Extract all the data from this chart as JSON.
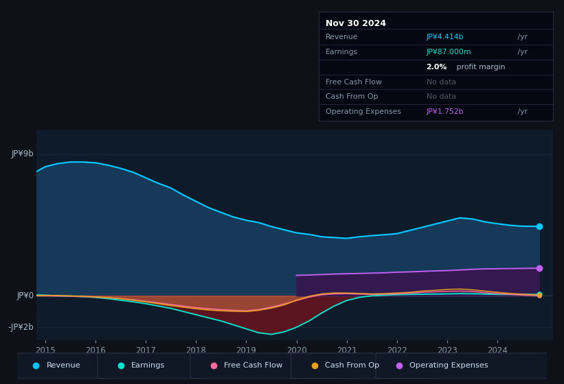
{
  "bg_color": "#0e1117",
  "plot_bg_color": "#0d1b2a",
  "title": "Nov 30 2024",
  "ylabel_top": "JP¥9b",
  "ylabel_zero": "JP¥0",
  "ylabel_neg": "-JP¥2b",
  "x_years": [
    2014.83,
    2015.0,
    2015.25,
    2015.5,
    2015.75,
    2016.0,
    2016.25,
    2016.5,
    2016.75,
    2017.0,
    2017.25,
    2017.5,
    2017.75,
    2018.0,
    2018.25,
    2018.5,
    2018.75,
    2019.0,
    2019.25,
    2019.5,
    2019.75,
    2020.0,
    2020.25,
    2020.5,
    2020.75,
    2021.0,
    2021.25,
    2021.5,
    2021.75,
    2022.0,
    2022.25,
    2022.5,
    2022.75,
    2023.0,
    2023.25,
    2023.5,
    2023.75,
    2024.0,
    2024.25,
    2024.5,
    2024.83
  ],
  "revenue": [
    7.9,
    8.2,
    8.4,
    8.5,
    8.5,
    8.45,
    8.3,
    8.1,
    7.85,
    7.5,
    7.15,
    6.85,
    6.4,
    6.0,
    5.6,
    5.3,
    5.0,
    4.8,
    4.65,
    4.4,
    4.2,
    4.0,
    3.9,
    3.75,
    3.7,
    3.65,
    3.75,
    3.82,
    3.88,
    3.95,
    4.15,
    4.35,
    4.55,
    4.75,
    4.95,
    4.88,
    4.7,
    4.58,
    4.48,
    4.42,
    4.414
  ],
  "earnings": [
    0.05,
    0.04,
    0.0,
    -0.02,
    -0.05,
    -0.1,
    -0.18,
    -0.28,
    -0.38,
    -0.5,
    -0.65,
    -0.8,
    -1.0,
    -1.2,
    -1.4,
    -1.6,
    -1.85,
    -2.1,
    -2.35,
    -2.45,
    -2.3,
    -2.0,
    -1.6,
    -1.1,
    -0.65,
    -0.3,
    -0.1,
    0.0,
    0.04,
    0.07,
    0.09,
    0.1,
    0.11,
    0.12,
    0.14,
    0.13,
    0.11,
    0.09,
    0.088,
    0.087,
    0.087
  ],
  "free_cash_flow": [
    0.0,
    0.0,
    -0.01,
    -0.03,
    -0.05,
    -0.08,
    -0.12,
    -0.18,
    -0.25,
    -0.35,
    -0.45,
    -0.55,
    -0.65,
    -0.75,
    -0.82,
    -0.88,
    -0.92,
    -0.95,
    -0.88,
    -0.72,
    -0.52,
    -0.3,
    -0.08,
    0.06,
    0.12,
    0.13,
    0.11,
    0.08,
    0.1,
    0.12,
    0.16,
    0.22,
    0.25,
    0.28,
    0.3,
    0.27,
    0.2,
    0.14,
    0.09,
    0.04,
    0.0
  ],
  "cash_from_op": [
    0.02,
    0.03,
    0.02,
    0.0,
    -0.03,
    -0.06,
    -0.12,
    -0.18,
    -0.28,
    -0.38,
    -0.5,
    -0.62,
    -0.72,
    -0.82,
    -0.9,
    -0.95,
    -0.98,
    -1.0,
    -0.92,
    -0.78,
    -0.58,
    -0.28,
    -0.03,
    0.12,
    0.18,
    0.18,
    0.15,
    0.12,
    0.14,
    0.18,
    0.22,
    0.3,
    0.35,
    0.4,
    0.43,
    0.38,
    0.3,
    0.22,
    0.15,
    0.1,
    0.05
  ],
  "op_expenses": [
    null,
    null,
    null,
    null,
    null,
    null,
    null,
    null,
    null,
    null,
    null,
    null,
    null,
    null,
    null,
    null,
    null,
    null,
    null,
    null,
    null,
    1.3,
    1.32,
    1.35,
    1.38,
    1.4,
    1.42,
    1.44,
    1.46,
    1.5,
    1.52,
    1.55,
    1.58,
    1.6,
    1.64,
    1.68,
    1.71,
    1.72,
    1.73,
    1.74,
    1.752
  ],
  "revenue_color": "#00c8ff",
  "revenue_fill": "#16395a",
  "earnings_color": "#00e5cc",
  "earnings_fill_neg": "#5a1520",
  "free_cash_flow_color": "#ff6b9d",
  "cash_from_op_color": "#e8a020",
  "op_expenses_color": "#c060f0",
  "op_expenses_fill": "#341850",
  "grid_color": "#253545",
  "ylim": [
    -2.8,
    10.5
  ],
  "xlim": [
    2014.83,
    2025.1
  ],
  "xticks": [
    2015,
    2016,
    2017,
    2018,
    2019,
    2020,
    2021,
    2022,
    2023,
    2024
  ],
  "info_box": {
    "title": "Nov 30 2024",
    "rows": [
      {
        "label": "Revenue",
        "value": "JP¥4.414b",
        "suffix": " /yr",
        "color": "#00c8ff",
        "gray": false
      },
      {
        "label": "Earnings",
        "value": "JP¥87.000m",
        "suffix": " /yr",
        "color": "#00e5cc",
        "gray": false
      },
      {
        "label": "",
        "value": "2.0%",
        "suffix": " profit margin",
        "color": "white",
        "gray": false,
        "bold_value": true
      },
      {
        "label": "Free Cash Flow",
        "value": "No data",
        "suffix": "",
        "color": "#666677",
        "gray": true
      },
      {
        "label": "Cash From Op",
        "value": "No data",
        "suffix": "",
        "color": "#666677",
        "gray": true
      },
      {
        "label": "Operating Expenses",
        "value": "JP¥1.752b",
        "suffix": " /yr",
        "color": "#c060f0",
        "gray": false
      }
    ]
  },
  "legend_items": [
    {
      "label": "Revenue",
      "color": "#00c8ff"
    },
    {
      "label": "Earnings",
      "color": "#00e5cc"
    },
    {
      "label": "Free Cash Flow",
      "color": "#ff6b9d"
    },
    {
      "label": "Cash From Op",
      "color": "#e8a020"
    },
    {
      "label": "Operating Expenses",
      "color": "#c060f0"
    }
  ]
}
